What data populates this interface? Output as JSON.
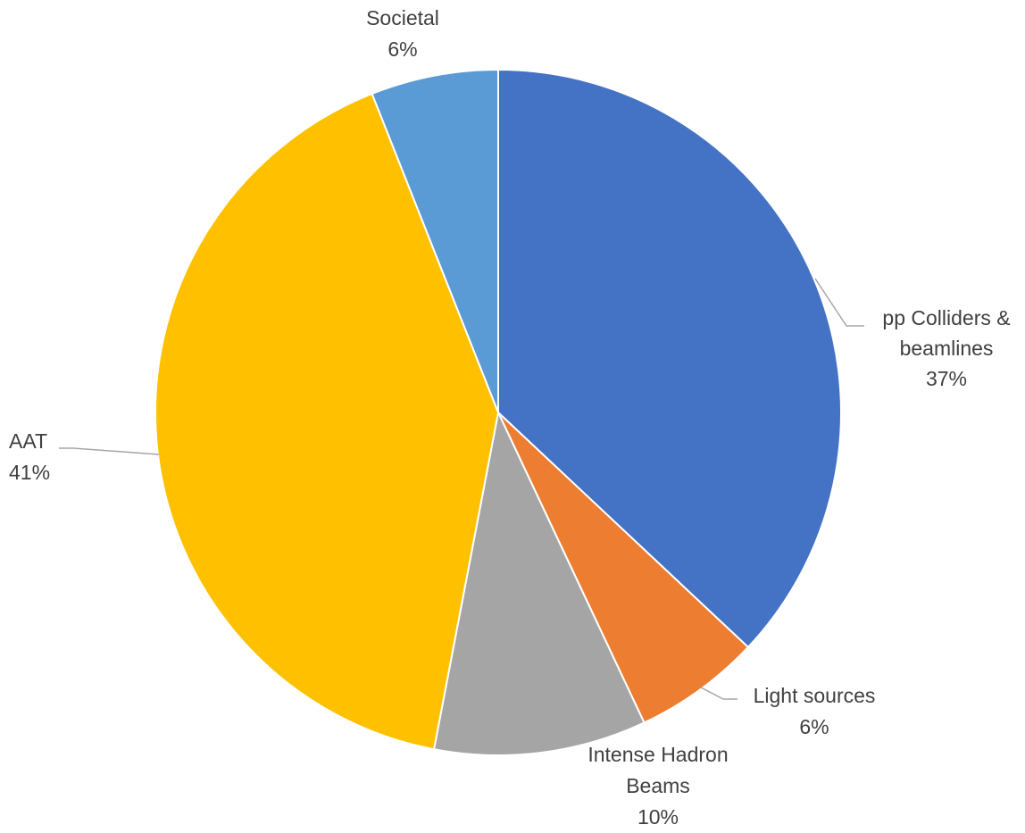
{
  "chart_data": {
    "type": "pie",
    "title": "",
    "start_angle_deg": 0,
    "direction": "clockwise",
    "legend": "none",
    "slices": [
      {
        "name": "pp Colliders & beamlines",
        "label_lines": [
          "pp Colliders &",
          "beamlines"
        ],
        "value": 37,
        "value_label": "37%",
        "color": "#4472C4"
      },
      {
        "name": "Light sources",
        "label_lines": [
          "Light sources"
        ],
        "value": 6,
        "value_label": "6%",
        "color": "#ED7D31"
      },
      {
        "name": "Intense Hadron Beams",
        "label_lines": [
          "Intense Hadron",
          "Beams"
        ],
        "value": 10,
        "value_label": "10%",
        "color": "#A5A5A5"
      },
      {
        "name": "AAT",
        "label_lines": [
          "AAT"
        ],
        "value": 41,
        "value_label": "41%",
        "color": "#FFC000"
      },
      {
        "name": "Societal",
        "label_lines": [
          "Societal"
        ],
        "value": 6,
        "value_label": "6%",
        "color": "#5B9BD5"
      }
    ]
  }
}
